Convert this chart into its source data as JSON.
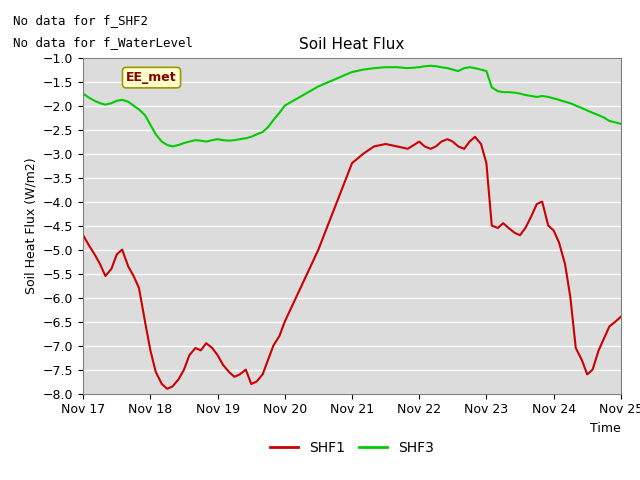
{
  "title": "Soil Heat Flux",
  "ylabel": "Soil Heat Flux (W/m2)",
  "xlabel": "Time",
  "no_data_text": [
    "No data for f_SHF2",
    "No data for f_WaterLevel"
  ],
  "ee_met_label": "EE_met",
  "legend_entries": [
    "SHF1",
    "SHF3"
  ],
  "shf1_color": "#cc0000",
  "shf3_color": "#00cc00",
  "background_color": "#dcdcdc",
  "fig_background": "#ffffff",
  "ylim": [
    -8.0,
    -1.0
  ],
  "yticks": [
    -8.0,
    -7.5,
    -7.0,
    -6.5,
    -6.0,
    -5.5,
    -5.0,
    -4.5,
    -4.0,
    -3.5,
    -3.0,
    -2.5,
    -2.0,
    -1.5,
    -1.0
  ],
  "xlim_days": [
    0.0,
    8.0
  ],
  "xtick_positions": [
    0,
    1,
    2,
    3,
    4,
    5,
    6,
    7,
    8
  ],
  "xtick_labels": [
    "Nov 17",
    "Nov 18",
    "Nov 19",
    "Nov 20",
    "Nov 21",
    "Nov 22",
    "Nov 23",
    "Nov 24",
    "Nov 25"
  ],
  "shf1_x": [
    0.0,
    0.08,
    0.17,
    0.25,
    0.33,
    0.42,
    0.5,
    0.58,
    0.67,
    0.75,
    0.83,
    0.92,
    1.0,
    1.08,
    1.17,
    1.25,
    1.33,
    1.42,
    1.5,
    1.58,
    1.67,
    1.75,
    1.83,
    1.92,
    2.0,
    2.08,
    2.17,
    2.25,
    2.33,
    2.42,
    2.5,
    2.58,
    2.67,
    2.75,
    2.83,
    2.92,
    3.0,
    3.5,
    4.0,
    4.17,
    4.33,
    4.5,
    4.67,
    4.83,
    5.0,
    5.08,
    5.17,
    5.25,
    5.33,
    5.42,
    5.5,
    5.58,
    5.67,
    5.75,
    5.83,
    5.92,
    6.0,
    6.08,
    6.17,
    6.25,
    6.33,
    6.42,
    6.5,
    6.58,
    6.67,
    6.75,
    6.83,
    6.92,
    7.0,
    7.08,
    7.17,
    7.25,
    7.33,
    7.42,
    7.5,
    7.58,
    7.67,
    7.75,
    7.83,
    7.92,
    8.0
  ],
  "shf1_y": [
    -4.7,
    -4.9,
    -5.1,
    -5.3,
    -5.55,
    -5.4,
    -5.1,
    -5.0,
    -5.35,
    -5.55,
    -5.8,
    -6.5,
    -7.1,
    -7.55,
    -7.8,
    -7.9,
    -7.85,
    -7.7,
    -7.5,
    -7.2,
    -7.05,
    -7.1,
    -6.95,
    -7.05,
    -7.2,
    -7.4,
    -7.55,
    -7.65,
    -7.6,
    -7.5,
    -7.8,
    -7.75,
    -7.6,
    -7.3,
    -7.0,
    -6.8,
    -6.5,
    -5.0,
    -3.2,
    -3.0,
    -2.85,
    -2.8,
    -2.85,
    -2.9,
    -2.75,
    -2.85,
    -2.9,
    -2.85,
    -2.75,
    -2.7,
    -2.75,
    -2.85,
    -2.9,
    -2.75,
    -2.65,
    -2.8,
    -3.2,
    -4.5,
    -4.55,
    -4.45,
    -4.55,
    -4.65,
    -4.7,
    -4.55,
    -4.3,
    -4.05,
    -4.0,
    -4.5,
    -4.6,
    -4.85,
    -5.3,
    -6.0,
    -7.05,
    -7.3,
    -7.6,
    -7.5,
    -7.1,
    -6.85,
    -6.6,
    -6.5,
    -6.4
  ],
  "shf3_x": [
    0.0,
    0.08,
    0.17,
    0.25,
    0.33,
    0.42,
    0.5,
    0.58,
    0.67,
    0.75,
    0.83,
    0.92,
    1.0,
    1.08,
    1.17,
    1.25,
    1.33,
    1.42,
    1.5,
    1.58,
    1.67,
    1.75,
    1.83,
    1.92,
    2.0,
    2.08,
    2.17,
    2.25,
    2.33,
    2.42,
    2.5,
    2.58,
    2.67,
    2.75,
    2.83,
    2.92,
    3.0,
    3.5,
    4.0,
    4.17,
    4.33,
    4.5,
    4.67,
    4.83,
    5.0,
    5.08,
    5.17,
    5.25,
    5.33,
    5.42,
    5.5,
    5.58,
    5.67,
    5.75,
    5.83,
    5.92,
    6.0,
    6.08,
    6.17,
    6.25,
    6.33,
    6.42,
    6.5,
    6.58,
    6.67,
    6.75,
    6.83,
    6.92,
    7.0,
    7.08,
    7.17,
    7.25,
    7.33,
    7.42,
    7.5,
    7.58,
    7.67,
    7.75,
    7.83,
    7.92,
    8.0
  ],
  "shf3_y": [
    -1.75,
    -1.83,
    -1.9,
    -1.95,
    -1.98,
    -1.95,
    -1.9,
    -1.88,
    -1.92,
    -2.0,
    -2.08,
    -2.2,
    -2.4,
    -2.6,
    -2.75,
    -2.82,
    -2.85,
    -2.82,
    -2.78,
    -2.75,
    -2.72,
    -2.73,
    -2.75,
    -2.72,
    -2.7,
    -2.72,
    -2.73,
    -2.72,
    -2.7,
    -2.68,
    -2.65,
    -2.6,
    -2.55,
    -2.45,
    -2.3,
    -2.15,
    -2.0,
    -1.6,
    -1.3,
    -1.25,
    -1.22,
    -1.2,
    -1.2,
    -1.22,
    -1.2,
    -1.18,
    -1.17,
    -1.18,
    -1.2,
    -1.22,
    -1.25,
    -1.28,
    -1.22,
    -1.2,
    -1.22,
    -1.25,
    -1.28,
    -1.62,
    -1.7,
    -1.72,
    -1.72,
    -1.73,
    -1.75,
    -1.78,
    -1.8,
    -1.82,
    -1.8,
    -1.82,
    -1.85,
    -1.88,
    -1.92,
    -1.95,
    -2.0,
    -2.05,
    -2.1,
    -2.15,
    -2.2,
    -2.25,
    -2.32,
    -2.35,
    -2.38
  ]
}
